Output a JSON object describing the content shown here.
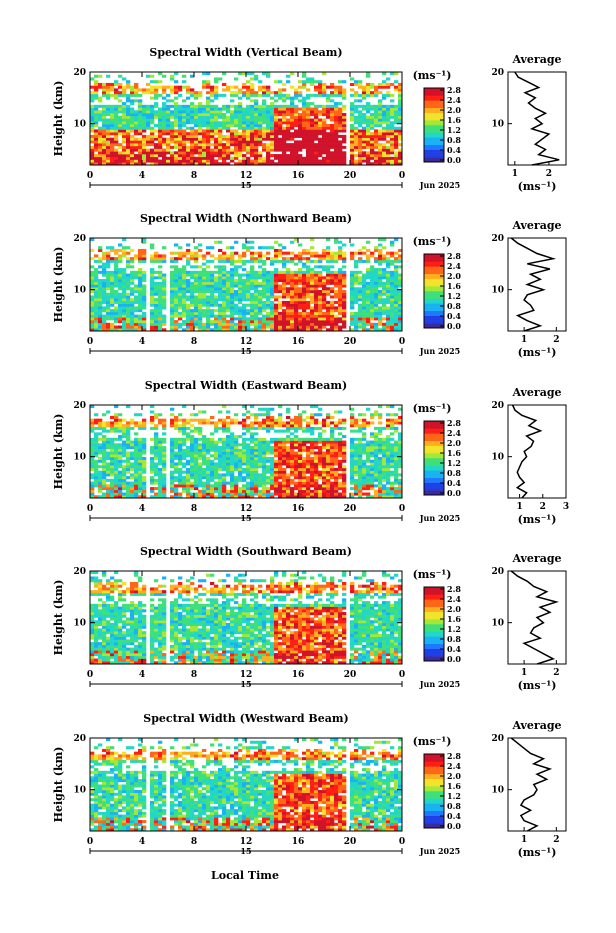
{
  "figure": {
    "xlabel": "Local Time",
    "date_label": "Jun 2025",
    "colorbar_unit": "(ms⁻¹)",
    "avg_title": "Average",
    "avg_xlabel": "(ms⁻¹)",
    "ylabel": "Height (km)",
    "day_label": "15"
  },
  "chart_data": [
    {
      "type": "heatmap",
      "title": "Spectral Width (Vertical Beam)",
      "xlabel": "Local Time",
      "ylabel": "Height (km)",
      "xticks": [
        "0",
        "4",
        "8",
        "12",
        "16",
        "20",
        "0"
      ],
      "yticks": [
        "10",
        "20"
      ],
      "xlim": [
        0,
        24
      ],
      "ylim": [
        2,
        20
      ],
      "colorbar": {
        "label": "(ms⁻¹)",
        "ticks": [
          "0.0",
          "0.4",
          "0.8",
          "1.2",
          "1.6",
          "2.0",
          "2.4",
          "2.8"
        ],
        "range": [
          0,
          3.0
        ]
      },
      "average_profile": {
        "title": "Average",
        "xlabel": "(ms⁻¹)",
        "xticks": [
          "1",
          "2"
        ],
        "xlim": [
          0.8,
          2.5
        ],
        "height": [
          2,
          3,
          4,
          5,
          6,
          7,
          8,
          9,
          10,
          11,
          12,
          13,
          14,
          15,
          16,
          17,
          18,
          19,
          20
        ],
        "width": [
          1.5,
          2.3,
          1.7,
          1.9,
          1.6,
          1.8,
          2.0,
          1.5,
          1.8,
          1.6,
          1.9,
          1.6,
          1.4,
          1.6,
          1.3,
          1.7,
          1.4,
          1.1,
          1.0
        ]
      }
    },
    {
      "type": "heatmap",
      "title": "Spectral Width (Northward Beam)",
      "xlabel": "Local Time",
      "ylabel": "Height (km)",
      "xticks": [
        "0",
        "4",
        "8",
        "12",
        "16",
        "20",
        "0"
      ],
      "yticks": [
        "10",
        "20"
      ],
      "xlim": [
        0,
        24
      ],
      "ylim": [
        2,
        20
      ],
      "colorbar": {
        "label": "(ms⁻¹)",
        "ticks": [
          "0.0",
          "0.4",
          "0.8",
          "1.2",
          "1.6",
          "2.0",
          "2.4",
          "2.8"
        ],
        "range": [
          0,
          3.0
        ]
      },
      "average_profile": {
        "title": "Average",
        "xlabel": "(ms⁻¹)",
        "xticks": [
          "1",
          "2"
        ],
        "xlim": [
          0.5,
          2.3
        ],
        "height": [
          2,
          3,
          4,
          5,
          6,
          7,
          8,
          9,
          10,
          11,
          12,
          13,
          14,
          15,
          16,
          17,
          18,
          19,
          20
        ],
        "width": [
          1.0,
          1.5,
          1.1,
          0.8,
          1.3,
          1.2,
          1.0,
          1.1,
          1.6,
          1.1,
          1.5,
          1.2,
          1.8,
          1.1,
          1.9,
          1.4,
          1.1,
          0.8,
          0.6
        ]
      }
    },
    {
      "type": "heatmap",
      "title": "Spectral Width (Eastward Beam)",
      "xlabel": "Local Time",
      "ylabel": "Height (km)",
      "xticks": [
        "0",
        "4",
        "8",
        "12",
        "16",
        "20",
        "0"
      ],
      "yticks": [
        "10",
        "20"
      ],
      "xlim": [
        0,
        24
      ],
      "ylim": [
        2,
        20
      ],
      "colorbar": {
        "label": "(ms⁻¹)",
        "ticks": [
          "0.0",
          "0.4",
          "0.8",
          "1.2",
          "1.6",
          "2.0",
          "2.4",
          "2.8"
        ],
        "range": [
          0,
          3.0
        ]
      },
      "average_profile": {
        "title": "Average",
        "xlabel": "(ms⁻¹)",
        "xticks": [
          "1",
          "2",
          "3"
        ],
        "xlim": [
          0.5,
          3.0
        ],
        "height": [
          2,
          3,
          4,
          5,
          6,
          7,
          8,
          9,
          10,
          11,
          12,
          13,
          14,
          15,
          16,
          17,
          18,
          19,
          20
        ],
        "width": [
          1.1,
          1.3,
          0.9,
          1.2,
          1.0,
          0.9,
          1.0,
          1.1,
          1.3,
          1.2,
          1.5,
          1.6,
          1.3,
          1.9,
          1.4,
          1.7,
          1.1,
          0.8,
          0.7
        ]
      }
    },
    {
      "type": "heatmap",
      "title": "Spectral Width (Southward Beam)",
      "xlabel": "Local Time",
      "ylabel": "Height (km)",
      "xticks": [
        "0",
        "4",
        "8",
        "12",
        "16",
        "20",
        "0"
      ],
      "yticks": [
        "10",
        "20"
      ],
      "xlim": [
        0,
        24
      ],
      "ylim": [
        2,
        20
      ],
      "colorbar": {
        "label": "(ms⁻¹)",
        "ticks": [
          "0.0",
          "0.4",
          "0.8",
          "1.2",
          "1.6",
          "2.0",
          "2.4",
          "2.8"
        ],
        "range": [
          0,
          3.0
        ]
      },
      "average_profile": {
        "title": "Average",
        "xlabel": "(ms⁻¹)",
        "xticks": [
          "1",
          "2"
        ],
        "xlim": [
          0.5,
          2.3
        ],
        "height": [
          2,
          3,
          4,
          5,
          6,
          7,
          8,
          9,
          10,
          11,
          12,
          13,
          14,
          15,
          16,
          17,
          18,
          19,
          20
        ],
        "width": [
          1.4,
          1.9,
          1.6,
          1.3,
          1.0,
          1.5,
          1.2,
          1.3,
          1.6,
          1.4,
          1.8,
          1.5,
          2.0,
          1.4,
          1.7,
          1.3,
          1.1,
          0.8,
          0.6
        ]
      }
    },
    {
      "type": "heatmap",
      "title": "Spectral Width (Westward Beam)",
      "xlabel": "Local Time",
      "ylabel": "Height (km)",
      "xticks": [
        "0",
        "4",
        "8",
        "12",
        "16",
        "20",
        "0"
      ],
      "yticks": [
        "10",
        "20"
      ],
      "xlim": [
        0,
        24
      ],
      "ylim": [
        2,
        20
      ],
      "colorbar": {
        "label": "(ms⁻¹)",
        "ticks": [
          "0.0",
          "0.4",
          "0.8",
          "1.2",
          "1.6",
          "2.0",
          "2.4",
          "2.8"
        ],
        "range": [
          0,
          3.0
        ]
      },
      "average_profile": {
        "title": "Average",
        "xlabel": "(ms⁻¹)",
        "xticks": [
          "1",
          "2"
        ],
        "xlim": [
          0.5,
          2.3
        ],
        "height": [
          2,
          3,
          4,
          5,
          6,
          7,
          8,
          9,
          10,
          11,
          12,
          13,
          14,
          15,
          16,
          17,
          18,
          19,
          20
        ],
        "width": [
          1.1,
          1.4,
          1.0,
          0.9,
          1.2,
          0.9,
          1.0,
          1.3,
          1.4,
          1.3,
          1.7,
          1.4,
          1.8,
          1.3,
          1.6,
          1.2,
          1.0,
          0.8,
          0.6
        ]
      }
    }
  ]
}
